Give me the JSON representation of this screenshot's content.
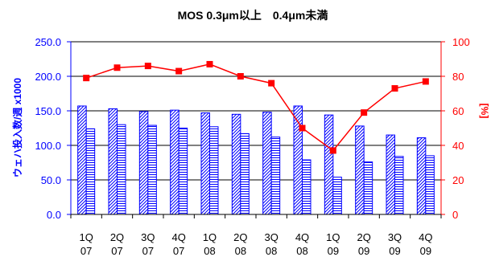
{
  "chart_data": {
    "type": "bar",
    "title": "MOS 0.3μm以上　0.4μm未満",
    "categories": [
      [
        "1Q",
        "07"
      ],
      [
        "2Q",
        "07"
      ],
      [
        "3Q",
        "07"
      ],
      [
        "4Q",
        "07"
      ],
      [
        "1Q",
        "08"
      ],
      [
        "2Q",
        "08"
      ],
      [
        "3Q",
        "08"
      ],
      [
        "4Q",
        "08"
      ],
      [
        "1Q",
        "09"
      ],
      [
        "2Q",
        "09"
      ],
      [
        "3Q",
        "09"
      ],
      [
        "4Q",
        "09"
      ]
    ],
    "series": [
      {
        "kind": "bar",
        "axis": "left",
        "pattern": "diagonal",
        "values": [
          157,
          153,
          149,
          151,
          147,
          145,
          148,
          157,
          144,
          128,
          115,
          111
        ]
      },
      {
        "kind": "bar",
        "axis": "left",
        "pattern": "horizontal",
        "values": [
          124,
          130,
          129,
          125,
          127,
          117,
          112,
          79,
          54,
          76,
          84,
          85
        ]
      },
      {
        "kind": "line",
        "axis": "right",
        "marker": "square",
        "values": [
          79,
          85,
          86,
          83,
          87,
          80,
          76,
          50,
          37,
          59,
          73,
          77
        ]
      }
    ],
    "ylabel": "ウェハ投入数/週 x1000",
    "y2label": "[%]",
    "ylim": [
      0,
      250
    ],
    "y2lim": [
      0,
      100
    ],
    "yticks": [
      "0.0",
      "50.0",
      "100.0",
      "150.0",
      "200.0",
      "250.0"
    ],
    "y2ticks": [
      "0",
      "20",
      "40",
      "60",
      "80",
      "100"
    ],
    "grid": true,
    "colors": {
      "bars": "#0000ff",
      "bar_fill": "#ffffff",
      "line": "#ff0000",
      "left_axis": "#0000ff",
      "right_axis": "#ff0000",
      "grid": "#000000"
    }
  }
}
